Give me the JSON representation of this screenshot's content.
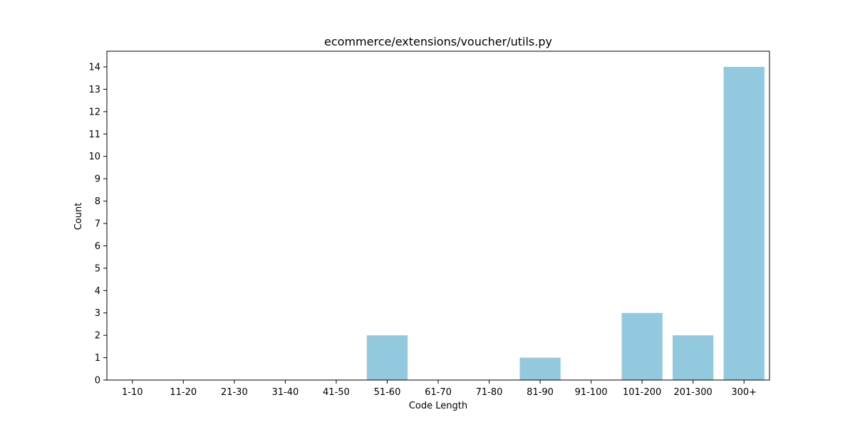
{
  "chart_data": {
    "type": "bar",
    "title": "ecommerce/extensions/voucher/utils.py",
    "xlabel": "Code Length",
    "ylabel": "Count",
    "categories": [
      "1-10",
      "11-20",
      "21-30",
      "31-40",
      "41-50",
      "51-60",
      "61-70",
      "71-80",
      "81-90",
      "91-100",
      "101-200",
      "201-300",
      "300+"
    ],
    "values": [
      0,
      0,
      0,
      0,
      0,
      2,
      0,
      0,
      1,
      0,
      3,
      2,
      14
    ],
    "yticks": [
      0,
      1,
      2,
      3,
      4,
      5,
      6,
      7,
      8,
      9,
      10,
      11,
      12,
      13,
      14
    ],
    "ylim": [
      0,
      14.7
    ],
    "bar_color": "#92c9df",
    "grid": false,
    "legend": "none"
  }
}
